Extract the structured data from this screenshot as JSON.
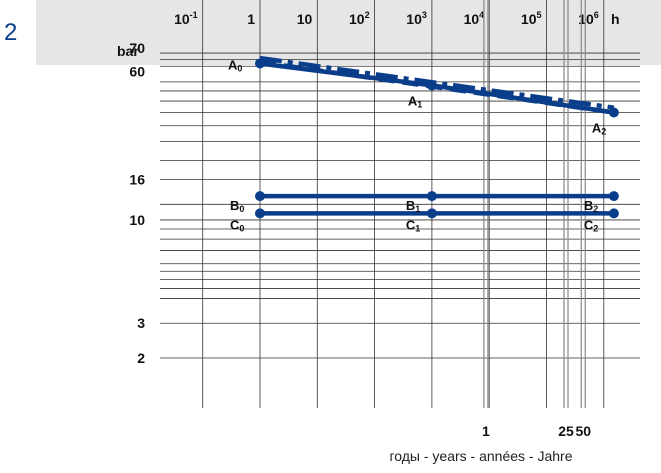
{
  "figure_number": "2",
  "colors": {
    "header_band": "#e6e6e6",
    "series": "#0a3d8a",
    "grid": "#333333",
    "age_marker": "#888888"
  },
  "chart_data": {
    "type": "line",
    "xscale": "log",
    "yscale": "log",
    "xunit": "h",
    "yunit": "bar",
    "xlim": [
      0.1,
      2000000
    ],
    "ylim": [
      1.2,
      100
    ],
    "x_ticks": [
      {
        "value": 0.1,
        "base": "10",
        "exp": "-1"
      },
      {
        "value": 1,
        "base": "1",
        "exp": ""
      },
      {
        "value": 10,
        "base": "10",
        "exp": ""
      },
      {
        "value": 100,
        "base": "10",
        "exp": "2"
      },
      {
        "value": 1000,
        "base": "10",
        "exp": "3"
      },
      {
        "value": 10000,
        "base": "10",
        "exp": "4"
      },
      {
        "value": 100000,
        "base": "10",
        "exp": "5"
      },
      {
        "value": 1000000,
        "base": "10",
        "exp": "6"
      }
    ],
    "x_minor_ticks": [
      0.1,
      1,
      10,
      100,
      1000,
      10000,
      100000,
      1000000
    ],
    "y_ticks": [
      70,
      60,
      16,
      10,
      3,
      2
    ],
    "y_grid": [
      70,
      65,
      60,
      50,
      45,
      40,
      35,
      30,
      25,
      20,
      16,
      12,
      10,
      9,
      8,
      7,
      6,
      5.5,
      5,
      4.5,
      4,
      3,
      2
    ],
    "age_axis": {
      "caption": "годы - years - années - Jahre",
      "labels": [
        {
          "text": "1",
          "hours": 8760
        },
        {
          "text": "25",
          "hours": 219000
        },
        {
          "text": "50",
          "hours": 438000
        }
      ]
    },
    "series": [
      {
        "style": "solid",
        "points": [
          [
            1,
            62
          ],
          [
            1000,
            48
          ],
          [
            1500000,
            35
          ]
        ],
        "labels": [
          {
            "text": "A",
            "sub": "0"
          },
          {
            "text": "A",
            "sub": "1"
          },
          {
            "text": "A",
            "sub": "2"
          }
        ]
      },
      {
        "style": "dash-dot",
        "points": [
          [
            1,
            66
          ],
          [
            1500000,
            37
          ]
        ]
      },
      {
        "style": "dashed",
        "points": [
          [
            1,
            63
          ],
          [
            1500000,
            35
          ]
        ]
      },
      {
        "style": "solid",
        "points": [
          [
            1,
            13.2
          ],
          [
            1000,
            13.2
          ],
          [
            1500000,
            13.2
          ]
        ],
        "labels": [
          {
            "text": "B",
            "sub": "0"
          },
          {
            "text": "B",
            "sub": "1"
          },
          {
            "text": "B",
            "sub": "2"
          }
        ]
      },
      {
        "style": "solid",
        "points": [
          [
            1,
            10.8
          ],
          [
            1000,
            10.8
          ],
          [
            1500000,
            10.8
          ]
        ],
        "labels": [
          {
            "text": "C",
            "sub": "0"
          },
          {
            "text": "C",
            "sub": "1"
          },
          {
            "text": "C",
            "sub": "2"
          }
        ]
      }
    ]
  }
}
